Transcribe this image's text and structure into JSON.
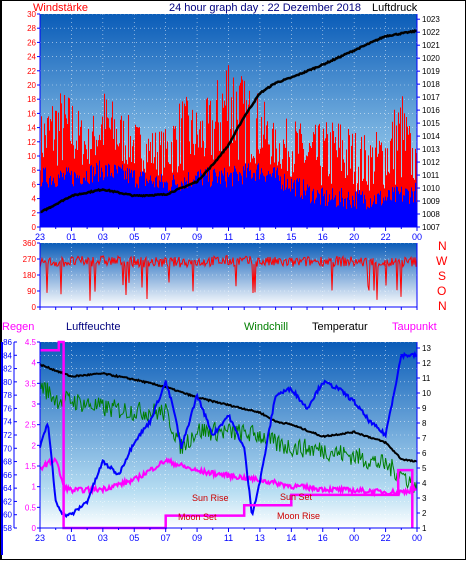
{
  "header": {
    "left_label": "Windstärke",
    "title": "24 hour graph day : 22 Dezember 2018",
    "right_label": "Luftdruck"
  },
  "direction_letters": [
    "N",
    "W",
    "S",
    "O",
    "N"
  ],
  "colors": {
    "wind": "#ff0000",
    "gust_bar": "#ff0000",
    "wind_avg": "#0000ff",
    "pressure": "#000000",
    "humidity": "#0000ff",
    "windchill": "#007f00",
    "temperature": "#000000",
    "dewpoint": "#ff00ff",
    "rain": "#ff00ff",
    "axis": "#0000ff",
    "left_axis_text": "#ff0000"
  },
  "bottom_legend": {
    "rain": "Regen",
    "humidity": "Luftfeuchte",
    "windchill": "Windchill",
    "temperature": "Temperatur",
    "dewpoint": "Taupunkt"
  },
  "annotations": [
    {
      "label": "Sun Rise",
      "x": 8.1
    },
    {
      "label": "Sun Set",
      "x": 16.2
    },
    {
      "label": "Moon Set",
      "x": 8.3
    },
    {
      "label": "Moon Rise",
      "x": 15.9
    }
  ],
  "chart_data": [
    {
      "type": "line",
      "name": "wind_pressure",
      "x_ticks": [
        "23",
        "01",
        "03",
        "05",
        "07",
        "09",
        "11",
        "13",
        "15",
        "16",
        "20",
        "22",
        "00"
      ],
      "left_axis": {
        "label": "Windstärke",
        "ticks": [
          0,
          2,
          4,
          6,
          8,
          10,
          12,
          14,
          16,
          18,
          20,
          22,
          24,
          26,
          28,
          30
        ],
        "ylim": [
          0,
          30
        ]
      },
      "right_axis": {
        "label": "Luftdruck",
        "ticks": [
          1007,
          1008,
          1009,
          1010,
          1011,
          1012,
          1013,
          1014,
          1015,
          1016,
          1017,
          1018,
          1019,
          1020,
          1021,
          1022,
          1023
        ],
        "ylim": [
          1007,
          1023.4
        ]
      },
      "series": [
        {
          "name": "Luftdruck",
          "axis": "right",
          "x": [
            0,
            2,
            4,
            6,
            8,
            10,
            11,
            12,
            13,
            14,
            15,
            16,
            18,
            20,
            22,
            24
          ],
          "values": [
            1008.1,
            1009.4,
            1009.9,
            1009.4,
            1009.5,
            1010.5,
            1011.8,
            1013.3,
            1015.5,
            1017.3,
            1018.1,
            1018.5,
            1019.5,
            1020.6,
            1021.7,
            1022.1
          ]
        },
        {
          "name": "gust",
          "axis": "left",
          "x": [
            0,
            1,
            2,
            3,
            4,
            5,
            6,
            7,
            8,
            9,
            10,
            11,
            12,
            13,
            14,
            15,
            16,
            17,
            18,
            19,
            20,
            21,
            22,
            23,
            24
          ],
          "values": [
            16,
            20,
            19,
            14,
            20,
            17,
            15,
            14,
            14,
            19,
            17,
            19,
            28,
            21,
            19,
            14,
            16,
            14,
            15,
            16,
            14,
            13,
            15,
            20,
            10
          ]
        },
        {
          "name": "wind_avg",
          "axis": "left",
          "x": [
            0,
            2,
            4,
            6,
            8,
            10,
            12,
            14,
            16,
            18,
            20,
            22,
            24
          ],
          "values": [
            7,
            7,
            8,
            7,
            6,
            7,
            7,
            8,
            6,
            4,
            4,
            4,
            5
          ]
        }
      ]
    },
    {
      "type": "scatter",
      "name": "wind_direction",
      "left_axis": {
        "ticks": [
          0,
          90,
          180,
          270,
          360
        ],
        "ylim": [
          0,
          360
        ]
      },
      "series": [
        {
          "name": "direction",
          "x": [
            0,
            2,
            4,
            6,
            8,
            10,
            12,
            14,
            16,
            18,
            20,
            22,
            24
          ],
          "values": [
            250,
            255,
            260,
            255,
            250,
            255,
            260,
            255,
            250,
            260,
            255,
            250,
            255
          ]
        }
      ]
    },
    {
      "type": "line",
      "name": "temperature_humidity",
      "x_ticks": [
        "23",
        "01",
        "03",
        "05",
        "07",
        "09",
        "11",
        "13",
        "14",
        "16",
        "00",
        "22",
        "00"
      ],
      "left_axis": {
        "label": "Luftfeuchte",
        "ticks": [
          58,
          60,
          62,
          64,
          66,
          68,
          70,
          72,
          74,
          76,
          78,
          80,
          82,
          84,
          86
        ],
        "ylim": [
          58,
          86
        ]
      },
      "rain_axis": {
        "label": "Regen",
        "ticks": [
          0,
          0.5,
          1,
          1.5,
          2,
          2.5,
          3,
          3.5,
          4,
          4.5
        ],
        "ylim": [
          0,
          4.5
        ]
      },
      "right_axis": {
        "label": "Temperatur",
        "ticks": [
          1,
          2,
          3,
          4,
          5,
          6,
          7,
          8,
          9,
          10,
          11,
          12,
          13
        ],
        "ylim": [
          1,
          13.4
        ]
      },
      "series": [
        {
          "name": "Luftfeuchte",
          "axis": "left",
          "x": [
            0,
            0.5,
            1,
            1.5,
            2,
            2.5,
            3,
            4,
            5,
            6,
            7,
            8,
            8.5,
            9,
            10,
            11,
            12,
            13,
            13.5,
            14,
            15,
            16,
            17,
            18,
            19,
            20,
            21,
            22,
            23,
            24
          ],
          "values": [
            70,
            74,
            62,
            60,
            60,
            61,
            62,
            68,
            66,
            71,
            74,
            80,
            76,
            70,
            78,
            72,
            75,
            70,
            60,
            65,
            78,
            79,
            76,
            80,
            79,
            77,
            74,
            72,
            84,
            84
          ]
        },
        {
          "name": "Temperatur",
          "axis": "right",
          "x": [
            0,
            2,
            4,
            6,
            8,
            10,
            12,
            14,
            15,
            16,
            18,
            20,
            22,
            23,
            24
          ],
          "values": [
            11.9,
            11.1,
            11.3,
            10.9,
            10.4,
            9.7,
            9.2,
            8.7,
            8.1,
            7.9,
            7.1,
            7.4,
            6.7,
            5.6,
            5.4
          ]
        },
        {
          "name": "Windchill",
          "axis": "right",
          "x": [
            0,
            1,
            2,
            4,
            6,
            8,
            9,
            10,
            12,
            14,
            15,
            16,
            18,
            20,
            22,
            23,
            24
          ],
          "values": [
            10.6,
            9.6,
            9.5,
            9.0,
            8.8,
            8.7,
            6.4,
            7.5,
            7.4,
            7.2,
            6.6,
            6.4,
            6.2,
            5.8,
            5.2,
            4.6,
            3.8
          ]
        },
        {
          "name": "Taupunkt",
          "axis": "right",
          "x": [
            0,
            1,
            1.5,
            2,
            4,
            6,
            8,
            10,
            12,
            14,
            16,
            18,
            20,
            22,
            23,
            24
          ],
          "values": [
            5.0,
            5.6,
            3.8,
            3.5,
            3.6,
            4.2,
            5.5,
            4.8,
            4.5,
            4.2,
            3.8,
            3.6,
            3.5,
            3.4,
            3.4,
            3.6
          ]
        },
        {
          "name": "Regen",
          "axis": "rain",
          "x": [
            0,
            1.2,
            1.2,
            1.5,
            1.5,
            8,
            8,
            13,
            13,
            16,
            16,
            22.8,
            22.8,
            23.7,
            23.7
          ],
          "values": [
            4.3,
            4.3,
            4.5,
            4.5,
            0.0,
            0.0,
            0.3,
            0.3,
            0.55,
            0.55,
            0.8,
            0.8,
            1.4,
            1.4,
            0.0
          ]
        }
      ]
    }
  ]
}
